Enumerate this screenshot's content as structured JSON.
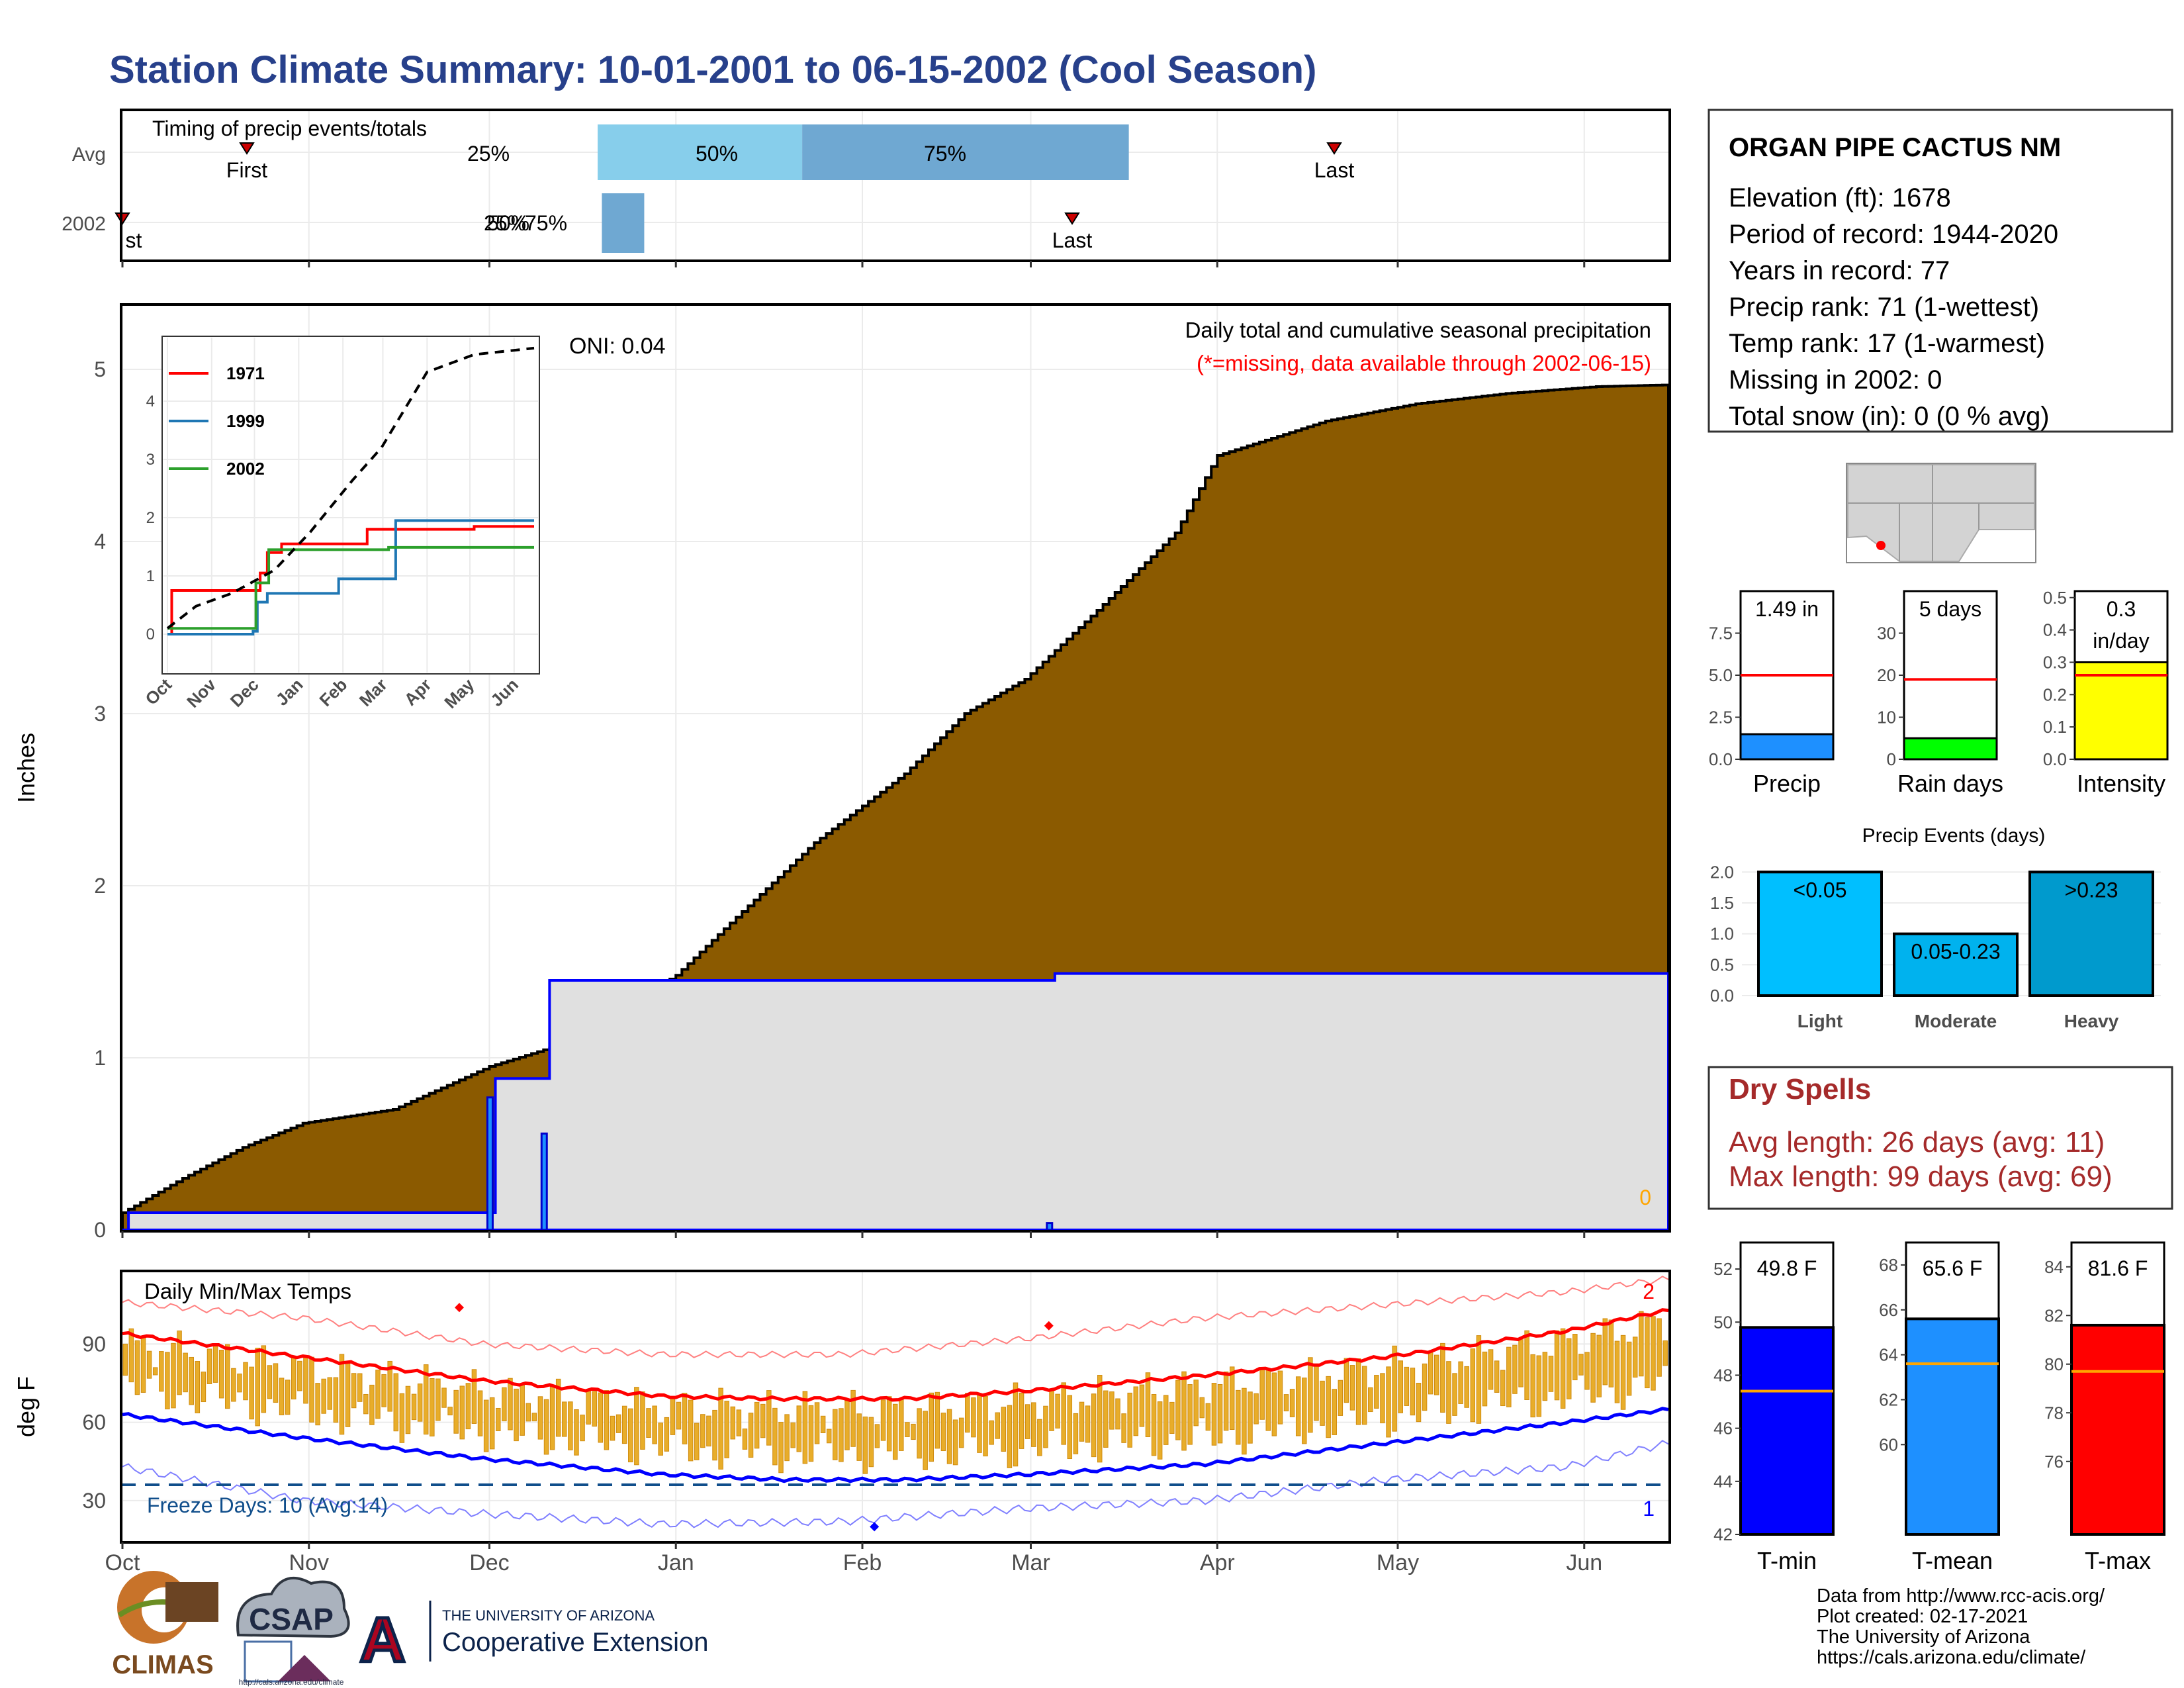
{
  "title": "Station Climate Summary: 10-01-2001 to 06-15-2002 (Cool Season)",
  "timing": {
    "label": "Timing of precip events/totals",
    "rows": [
      "Avg",
      "2002"
    ],
    "marker_labels": {
      "first": "First",
      "last": "Last"
    },
    "pct_labels": [
      "25%",
      "50%",
      "75%"
    ],
    "avg_first_day": 63,
    "avg_last_day": 200,
    "avg_q25_day": 79,
    "avg_q50_day": 113,
    "avg_q75_day": 197,
    "y2002_first_day": 0,
    "y2002_last_day": 154,
    "y2002_q25_day": 83,
    "y2002_q75_day": 89,
    "avg_colors": [
      "#87ceeb",
      "#6fa8d2"
    ],
    "y2002_color": "#6fa8d2",
    "y2002_overlap_text": "25%",
    "y2002_first_fragment": "st"
  },
  "precip": {
    "subtitle": "Daily total and cumulative seasonal precipitation",
    "note": "(*=missing, data available through 2002-06-15)",
    "oni": "ONI: 0.04",
    "ylabel": "Inches",
    "yticks": [
      "0",
      "1",
      "2",
      "3",
      "4",
      "5"
    ],
    "missing_count": "0",
    "avg_color": "#8b5a00",
    "obs_color": "#0000ff",
    "obs_fill": "#e0e0e0"
  },
  "inset": {
    "legend": [
      "1971",
      "1999",
      "2002"
    ],
    "colors": [
      "#ff0000",
      "#1f77b4",
      "#2ca02c"
    ],
    "xticks": [
      "Oct",
      "Nov",
      "Dec",
      "Jan",
      "Feb",
      "Mar",
      "Apr",
      "May",
      "Jun"
    ],
    "yticks": [
      "0",
      "1",
      "2",
      "3",
      "4"
    ]
  },
  "temps": {
    "label": "Daily Min/Max Temps",
    "ylabel": "deg F",
    "yticks": [
      "30",
      "60",
      "90"
    ],
    "freeze": "Freeze Days: 10 (Avg:14)",
    "count_max": "2",
    "count_min": "1"
  },
  "months": [
    "Oct",
    "Nov",
    "Dec",
    "Jan",
    "Feb",
    "Mar",
    "Apr",
    "May",
    "Jun"
  ],
  "station": {
    "name": "ORGAN PIPE CACTUS NM",
    "lines": [
      "Elevation (ft): 1678",
      "Period of record: 1944-2020",
      "Years in record: 77",
      "Precip rank: 71 (1-wettest)",
      "Temp rank: 17 (1-warmest)",
      "Missing in 2002: 0",
      "Total snow (in): 0 (0 % avg)"
    ]
  },
  "mini": [
    {
      "label": "Precip",
      "value_text": "1.49 in",
      "value": 1.49,
      "avg": 5.0,
      "ymax": 10.0,
      "yticks": [
        "0.0",
        "2.5",
        "5.0",
        "7.5"
      ],
      "color": "#1e90ff"
    },
    {
      "label": "Rain days",
      "value_text": "5 days",
      "value": 5,
      "avg": 19,
      "ymax": 40,
      "yticks": [
        "0",
        "10",
        "20",
        "30"
      ],
      "color": "#00ff00"
    },
    {
      "label": "Intensity",
      "value_text": "0.3",
      "value_text2": "in/day",
      "value": 0.3,
      "avg": 0.26,
      "ymax": 0.52,
      "yticks": [
        "0.0",
        "0.1",
        "0.2",
        "0.3",
        "0.4",
        "0.5"
      ],
      "color": "#ffff00"
    }
  ],
  "events": {
    "title": "Precip Events (days)",
    "yticks": [
      "0.0",
      "0.5",
      "1.0",
      "1.5",
      "2.0"
    ],
    "bars": [
      {
        "cat": "Light",
        "label": "<0.05",
        "value": 2,
        "color": "#00bfff"
      },
      {
        "cat": "Moderate",
        "label": "0.05-0.23",
        "value": 1,
        "color": "#00b2ee"
      },
      {
        "cat": "Heavy",
        "label": ">0.23",
        "value": 2,
        "color": "#009acd"
      }
    ]
  },
  "dry": {
    "title": "Dry Spells",
    "avg": "Avg length: 26 days (avg: 11)",
    "max": "Max length: 99 days (avg: 69)"
  },
  "tbars": [
    {
      "label": "T-min",
      "value_text": "49.8 F",
      "value": 49.8,
      "avg": 47.4,
      "ymin": 42,
      "ymax": 53,
      "yticks": [
        "42",
        "44",
        "46",
        "48",
        "50",
        "52"
      ],
      "color": "#0000ff"
    },
    {
      "label": "T-mean",
      "value_text": "65.6 F",
      "value": 65.6,
      "avg": 63.6,
      "ymin": 56,
      "ymax": 69,
      "yticks": [
        "60",
        "62",
        "64",
        "66",
        "68"
      ],
      "color": "#1e90ff"
    },
    {
      "label": "T-max",
      "value_text": "81.6 F",
      "value": 81.6,
      "avg": 79.7,
      "ymin": 73,
      "ymax": 85,
      "yticks": [
        "76",
        "78",
        "80",
        "82",
        "84"
      ],
      "color": "#ff0000"
    }
  ],
  "footer": {
    "lines": [
      "Data from http://www.rcc-acis.org/",
      "Plot created: 02-17-2021",
      "The University of Arizona",
      "https://cals.arizona.edu/climate/"
    ],
    "climas": "CLIMAS",
    "csap": "CSAP",
    "csap_url": "http://cals.arizona.edu/climate",
    "ua_small": "THE UNIVERSITY OF ARIZONA",
    "ua_big": "Cooperative Extension",
    "ua_letter": "A"
  },
  "chart_data": [
    {
      "type": "area",
      "title": "Daily total and cumulative seasonal precipitation",
      "ylabel": "Inches",
      "xlabel": "",
      "x_unit": "days since Oct 1",
      "ylim": [
        0,
        5.3
      ],
      "series": [
        {
          "name": "Average cumulative",
          "x": [
            0,
            10,
            20,
            30,
            45,
            61,
            75,
            92,
            100,
            115,
            130,
            140,
            150,
            162,
            175,
            182,
            200,
            215,
            230,
            245,
            257
          ],
          "values": [
            0.1,
            0.3,
            0.48,
            0.62,
            0.7,
            0.95,
            1.1,
            1.48,
            1.75,
            2.25,
            2.65,
            3.0,
            3.2,
            3.6,
            4.05,
            4.5,
            4.7,
            4.8,
            4.86,
            4.9,
            4.91
          ]
        },
        {
          "name": "2002 cumulative",
          "x": [
            0,
            1,
            61,
            62,
            70,
            71,
            154,
            155,
            257
          ],
          "values": [
            0,
            0.1,
            0.1,
            0.88,
            0.88,
            1.45,
            1.45,
            1.49,
            1.49
          ]
        },
        {
          "name": "2002 daily",
          "x": [
            61,
            70,
            154
          ],
          "values": [
            0.77,
            0.56,
            0.04
          ]
        }
      ]
    },
    {
      "type": "line",
      "title": "",
      "x_unit": "days since Oct 1",
      "ylim": [
        0,
        5.3
      ],
      "series": [
        {
          "name": "1971",
          "x": [
            0,
            3,
            60,
            65,
            70,
            80,
            120,
            140,
            215,
            257
          ],
          "values": [
            0,
            0.75,
            0.75,
            1.05,
            1.4,
            1.55,
            1.55,
            1.8,
            1.85,
            1.85
          ]
        },
        {
          "name": "1999",
          "x": [
            0,
            60,
            63,
            70,
            110,
            120,
            150,
            160,
            257
          ],
          "values": [
            0,
            0.05,
            0.55,
            0.7,
            0.7,
            0.95,
            0.95,
            1.95,
            1.95
          ]
        },
        {
          "name": "2002",
          "x": [
            0,
            61,
            62,
            70,
            71,
            154,
            155,
            257
          ],
          "values": [
            0.1,
            0.1,
            0.88,
            0.88,
            1.45,
            1.45,
            1.49,
            1.49
          ]
        },
        {
          "name": "Average",
          "x": [
            0,
            20,
            45,
            75,
            100,
            130,
            150,
            182,
            215,
            257
          ],
          "values": [
            0.1,
            0.48,
            0.7,
            1.1,
            1.75,
            2.65,
            3.2,
            4.5,
            4.8,
            4.91
          ]
        }
      ]
    },
    {
      "type": "line",
      "title": "Daily Min/Max Temps",
      "ylabel": "deg F",
      "x_unit": "days since Oct 1",
      "ylim": [
        14,
        118
      ],
      "series": [
        {
          "name": "Avg max",
          "x": [
            0,
            30,
            60,
            90,
            110,
            130,
            150,
            180,
            210,
            240,
            257
          ],
          "values": [
            94,
            85,
            76,
            70,
            69,
            69,
            72,
            78,
            85,
            95,
            103
          ]
        },
        {
          "name": "Avg min",
          "x": [
            0,
            30,
            60,
            90,
            110,
            130,
            150,
            180,
            210,
            240,
            257
          ],
          "values": [
            63,
            54,
            46,
            40,
            38,
            38,
            40,
            44,
            52,
            60,
            65
          ]
        },
        {
          "name": "Record max",
          "x": [
            0,
            30,
            60,
            90,
            120,
            150,
            180,
            210,
            240,
            257
          ],
          "values": [
            106,
            100,
            90,
            86,
            86,
            92,
            100,
            105,
            110,
            115
          ]
        },
        {
          "name": "Record min",
          "x": [
            0,
            30,
            60,
            90,
            120,
            150,
            180,
            210,
            240,
            257
          ],
          "values": [
            43,
            30,
            25,
            21,
            22,
            27,
            30,
            38,
            43,
            52
          ]
        }
      ]
    },
    {
      "type": "bar",
      "title": "Precip Events (days)",
      "categories": [
        "Light",
        "Moderate",
        "Heavy"
      ],
      "values": [
        2,
        1,
        2
      ],
      "ylim": [
        0,
        2.1
      ]
    },
    {
      "type": "bar",
      "title": "",
      "categories": [
        "Precip",
        "Rain days",
        "Intensity"
      ],
      "values": [
        1.49,
        5,
        0.3
      ],
      "avg_line": [
        5.0,
        19,
        0.26
      ]
    },
    {
      "type": "bar",
      "title": "",
      "categories": [
        "T-min",
        "T-mean",
        "T-max"
      ],
      "values": [
        49.8,
        65.6,
        81.6
      ],
      "avg_line": [
        47.4,
        63.6,
        79.7
      ]
    }
  ]
}
